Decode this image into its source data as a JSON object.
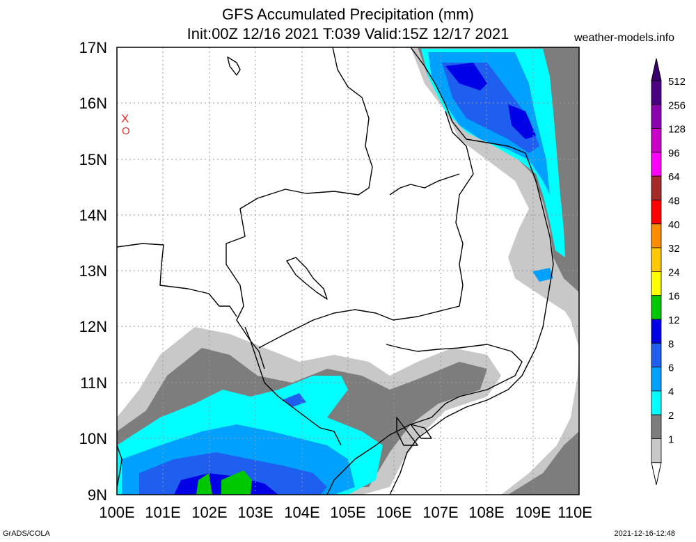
{
  "header": {
    "title_line1": "GFS Accumulated Precipitation (mm)",
    "title_line2": "Init:00Z 12/16 2021 T:039 Valid:15Z 12/17 2021",
    "site": "weather-models.info"
  },
  "map": {
    "lat_labels": [
      "17N",
      "16N",
      "15N",
      "14N",
      "13N",
      "12N",
      "11N",
      "10N",
      "9N"
    ],
    "lon_labels": [
      "100E",
      "101E",
      "102E",
      "103E",
      "104E",
      "105E",
      "106E",
      "107E",
      "108E",
      "109E",
      "110E"
    ],
    "marker_x": "X",
    "marker_o": "O"
  },
  "legend": {
    "items": [
      {
        "label": "512",
        "color": "#4b0082"
      },
      {
        "label": "256",
        "color": "#8b00b0"
      },
      {
        "label": "128",
        "color": "#c800c8"
      },
      {
        "label": "96",
        "color": "#ff00ff"
      },
      {
        "label": "64",
        "color": "#a52a2a"
      },
      {
        "label": "48",
        "color": "#ff0000"
      },
      {
        "label": "40",
        "color": "#ff8c00"
      },
      {
        "label": "32",
        "color": "#ffc800"
      },
      {
        "label": "24",
        "color": "#ffff00"
      },
      {
        "label": "16",
        "color": "#00c800"
      },
      {
        "label": "12",
        "color": "#0000e6"
      },
      {
        "label": "8",
        "color": "#1e5ff0"
      },
      {
        "label": "6",
        "color": "#00a0ff"
      },
      {
        "label": "4",
        "color": "#00ffff"
      },
      {
        "label": "2",
        "color": "#7d7d7d"
      },
      {
        "label": "1",
        "color": "#c8c8c8"
      }
    ]
  },
  "footer": {
    "left": "GrADS/COLA",
    "right": "2021-12-16-12:48"
  }
}
